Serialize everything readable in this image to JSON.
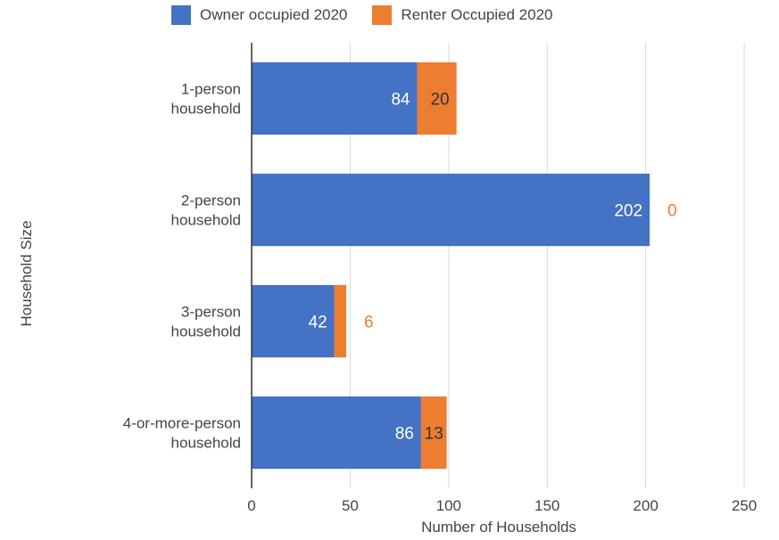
{
  "chart_data": {
    "type": "bar",
    "orientation": "horizontal",
    "stacked": true,
    "categories": [
      [
        "1-person",
        "household"
      ],
      [
        "2-person",
        "household"
      ],
      [
        "3-person",
        "household"
      ],
      [
        "4-or-more-person",
        "household"
      ]
    ],
    "series": [
      {
        "name": "Owner occupied 2020",
        "color": "#4472c4",
        "values": [
          84,
          202,
          42,
          86
        ]
      },
      {
        "name": "Renter Occupied 2020",
        "color": "#ed7d31",
        "values": [
          20,
          0,
          6,
          13
        ]
      }
    ],
    "xlabel": "Number of Households",
    "ylabel": "Household Size",
    "xlim": [
      0,
      250
    ],
    "xticks": [
      0,
      50,
      100,
      150,
      200,
      250
    ],
    "grid": true,
    "legend": "top"
  }
}
